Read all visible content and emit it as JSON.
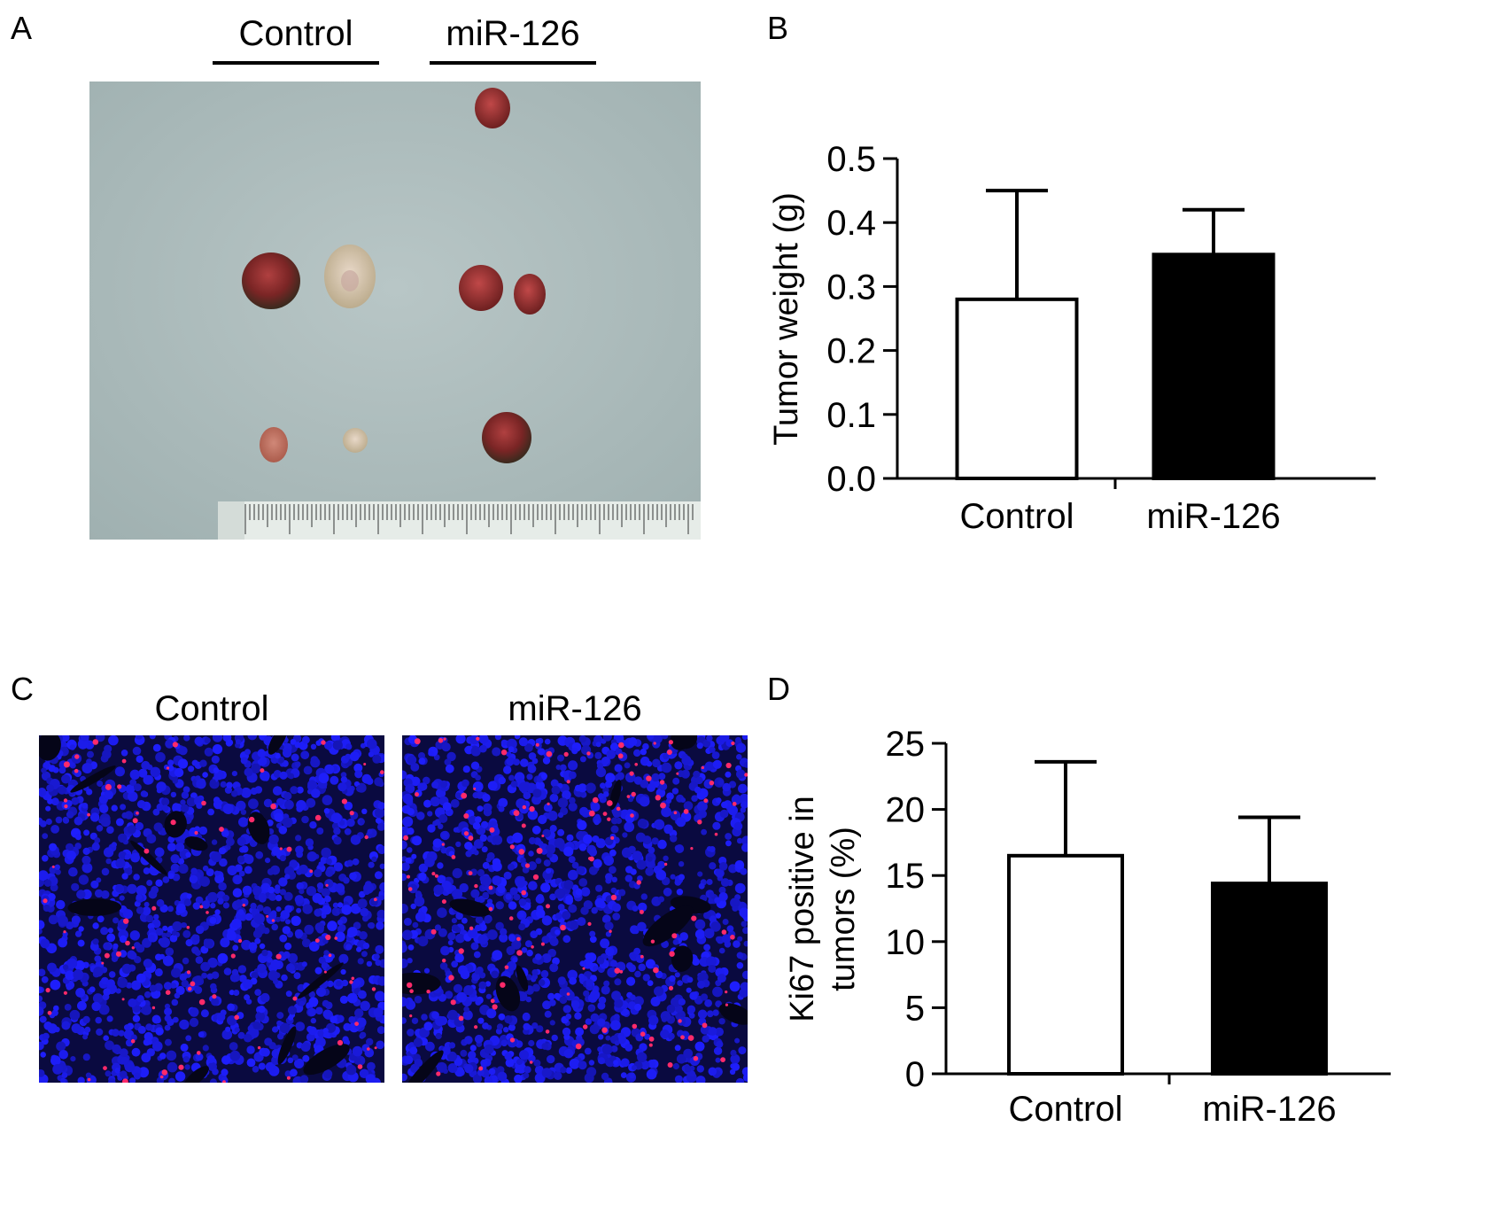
{
  "panels": {
    "a": {
      "letter": "A",
      "groups": [
        "Control",
        "miR-126"
      ]
    },
    "b": {
      "letter": "B"
    },
    "c": {
      "letter": "C",
      "groups": [
        "Control",
        "miR-126"
      ]
    },
    "d": {
      "letter": "D"
    }
  },
  "colors": {
    "control_bar": "#ffffff",
    "mir126_bar": "#000000",
    "nuclei": "#1a1aff",
    "ki67": "#ff2a6a",
    "photo_background": "#a9b9b9"
  },
  "chart_data": [
    {
      "panel": "B",
      "type": "bar",
      "categories": [
        "Control",
        "miR-126"
      ],
      "values": [
        0.28,
        0.35
      ],
      "error_upper": [
        0.45,
        0.42
      ],
      "bar_colors": [
        "#ffffff",
        "#000000"
      ],
      "ylabel": "Tumor weight (g)",
      "xlabel": "",
      "ylim": [
        0,
        0.5
      ],
      "yticks": [
        "0.0",
        "0.1",
        "0.2",
        "0.3",
        "0.4",
        "0.5"
      ],
      "grid": false
    },
    {
      "panel": "D",
      "type": "bar",
      "categories": [
        "Control",
        "miR-126"
      ],
      "values": [
        16.5,
        14.4
      ],
      "error_upper": [
        23.6,
        19.4
      ],
      "bar_colors": [
        "#ffffff",
        "#000000"
      ],
      "ylabel_lines": [
        "Ki67 positive in",
        "tumors (%)"
      ],
      "xlabel": "",
      "ylim": [
        0,
        25
      ],
      "yticks": [
        "0",
        "5",
        "10",
        "15",
        "20",
        "25"
      ],
      "grid": false
    }
  ]
}
